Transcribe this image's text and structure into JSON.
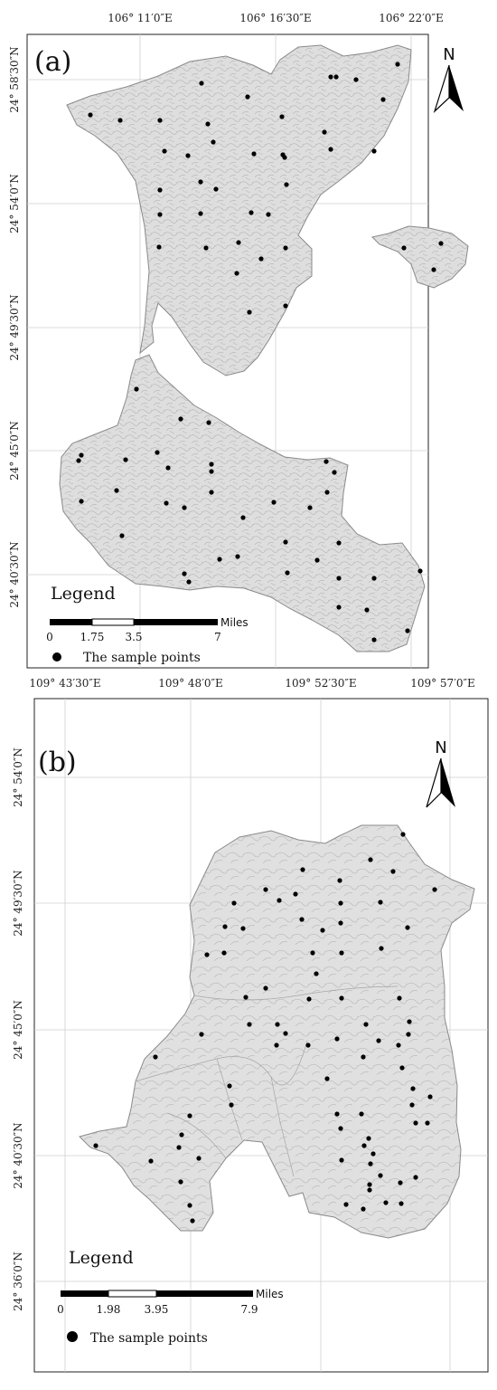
{
  "figure": {
    "panels": [
      {
        "id": "a",
        "label": "(a)",
        "lon_ticks": [
          "106° 11′0″E",
          "106° 16′30″E",
          "106° 22′0″E"
        ],
        "lat_ticks": [
          "24° 58′30″N",
          "24° 54′0″N",
          "24° 49′30″N",
          "24° 45′0″N",
          "24° 40′30″N"
        ],
        "north_label": "N",
        "legend_title": "Legend",
        "scale_unit": "Miles",
        "scale_ticks": [
          "0",
          "1.75",
          "3.5",
          "7"
        ],
        "legend_item": "The sample points",
        "colors": {
          "land": "#dedede",
          "outline": "#8a8a8a",
          "point": "#000000",
          "grid": "#cfcfcf"
        }
      },
      {
        "id": "b",
        "label": "(b)",
        "lon_ticks": [
          "109° 43′30″E",
          "109° 48′0″E",
          "109° 52′30″E",
          "109° 57′0″E"
        ],
        "lat_ticks": [
          "24° 54′0″N",
          "24° 49′30″N",
          "24° 45′0″N",
          "24° 40′30″N",
          "24° 36′0″N"
        ],
        "north_label": "N",
        "legend_title": "Legend",
        "scale_unit": "Miles",
        "scale_ticks": [
          "0",
          "1.98",
          "3.95",
          "7.9"
        ],
        "legend_item": "The sample points",
        "colors": {
          "land": "#dedede",
          "outline": "#8a8a8a",
          "point": "#000000",
          "grid": "#cfcfcf"
        }
      }
    ]
  }
}
